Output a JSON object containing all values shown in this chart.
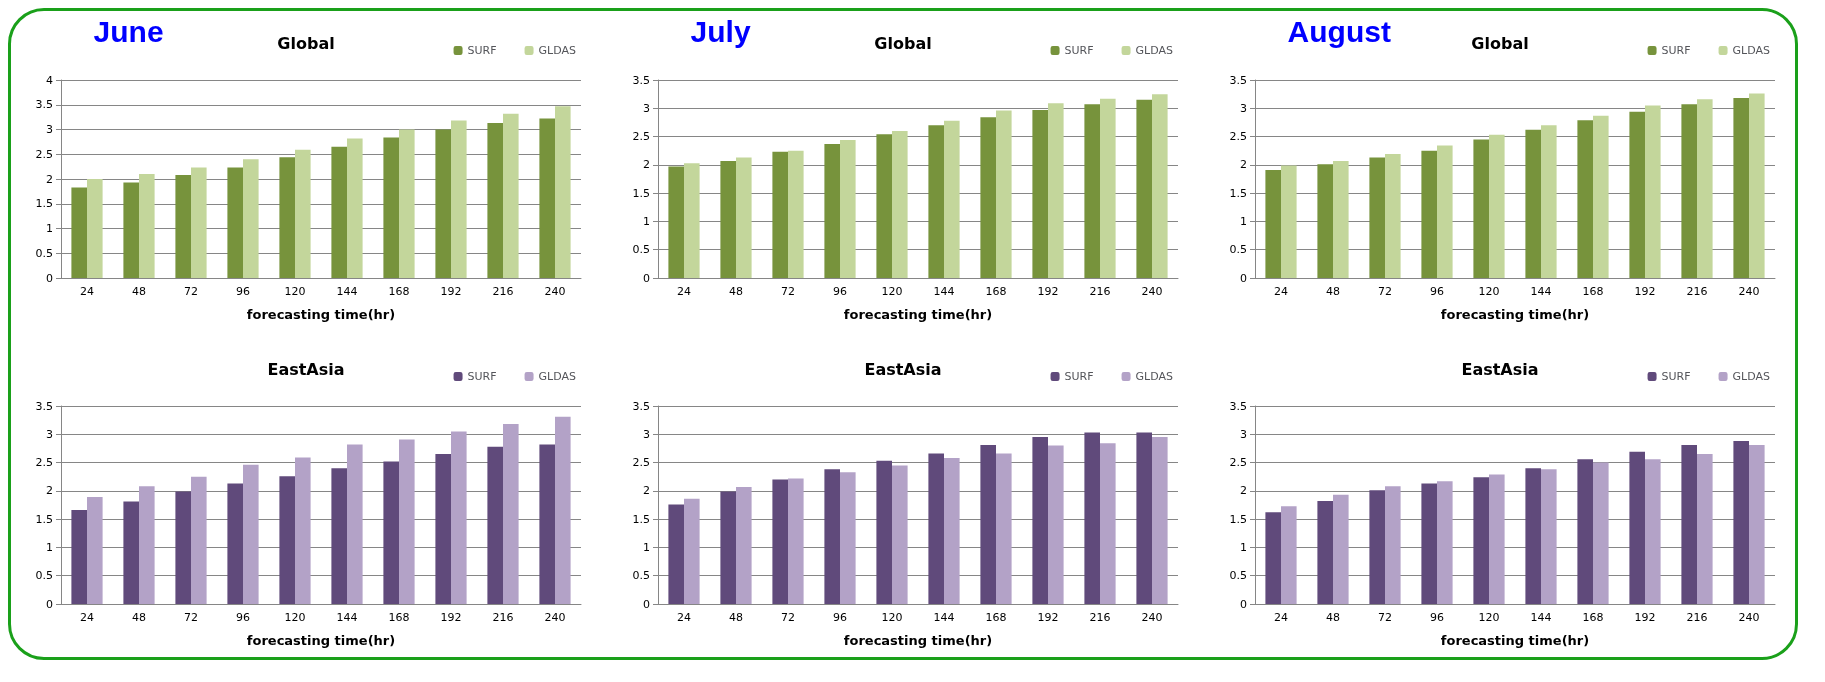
{
  "chart_data": [
    {
      "type": "bar",
      "title": "Global",
      "annotations": [
        "June"
      ],
      "xlabel": "forecasting time(hr)",
      "categories": [
        "24",
        "48",
        "72",
        "96",
        "120",
        "144",
        "168",
        "192",
        "216",
        "240"
      ],
      "ylim": [
        0,
        4
      ],
      "yticks": [
        0,
        0.5,
        1,
        1.5,
        2,
        2.5,
        3,
        3.5,
        4
      ],
      "grid": "y",
      "legend": "top right",
      "series": [
        {
          "name": "SURF",
          "color": "#77933c",
          "values": [
            1.83,
            1.93,
            2.08,
            2.23,
            2.44,
            2.65,
            2.84,
            3.0,
            3.13,
            3.22
          ]
        },
        {
          "name": "GLDAS",
          "color": "#c3d69b",
          "values": [
            2.0,
            2.1,
            2.23,
            2.4,
            2.59,
            2.82,
            3.0,
            3.18,
            3.32,
            3.47
          ]
        }
      ]
    },
    {
      "type": "bar",
      "title": "Global",
      "annotations": [
        "July"
      ],
      "xlabel": "forecasting time(hr)",
      "categories": [
        "24",
        "48",
        "72",
        "96",
        "120",
        "144",
        "168",
        "192",
        "216",
        "240"
      ],
      "ylim": [
        0,
        3.5
      ],
      "yticks": [
        0,
        0.5,
        1,
        1.5,
        2,
        2.5,
        3,
        3.5
      ],
      "grid": "y",
      "legend": "top right",
      "series": [
        {
          "name": "SURF",
          "color": "#77933c",
          "values": [
            1.97,
            2.07,
            2.23,
            2.37,
            2.54,
            2.7,
            2.84,
            2.97,
            3.07,
            3.15
          ]
        },
        {
          "name": "GLDAS",
          "color": "#c3d69b",
          "values": [
            2.03,
            2.13,
            2.25,
            2.44,
            2.6,
            2.78,
            2.96,
            3.09,
            3.17,
            3.25
          ]
        }
      ]
    },
    {
      "type": "bar",
      "title": "Global",
      "annotations": [
        "August"
      ],
      "xlabel": "forecasting time(hr)",
      "categories": [
        "24",
        "48",
        "72",
        "96",
        "120",
        "144",
        "168",
        "192",
        "216",
        "240"
      ],
      "ylim": [
        0,
        3.5
      ],
      "yticks": [
        0,
        0.5,
        1,
        1.5,
        2,
        2.5,
        3,
        3.5
      ],
      "grid": "y",
      "legend": "top right",
      "series": [
        {
          "name": "SURF",
          "color": "#77933c",
          "values": [
            1.91,
            2.01,
            2.13,
            2.25,
            2.45,
            2.62,
            2.79,
            2.94,
            3.07,
            3.18
          ]
        },
        {
          "name": "GLDAS",
          "color": "#c3d69b",
          "values": [
            1.99,
            2.07,
            2.19,
            2.34,
            2.53,
            2.7,
            2.87,
            3.05,
            3.16,
            3.26
          ]
        }
      ]
    },
    {
      "type": "bar",
      "title": "EastAsia",
      "xlabel": "forecasting time(hr)",
      "categories": [
        "24",
        "48",
        "72",
        "96",
        "120",
        "144",
        "168",
        "192",
        "216",
        "240"
      ],
      "ylim": [
        0,
        3.5
      ],
      "yticks": [
        0,
        0.5,
        1,
        1.5,
        2,
        2.5,
        3,
        3.5
      ],
      "grid": "y",
      "legend": "top right",
      "series": [
        {
          "name": "SURF",
          "color": "#604a7b",
          "values": [
            1.66,
            1.81,
            1.99,
            2.13,
            2.26,
            2.4,
            2.52,
            2.65,
            2.78,
            2.82
          ]
        },
        {
          "name": "GLDAS",
          "color": "#b3a2c7",
          "values": [
            1.89,
            2.08,
            2.25,
            2.46,
            2.59,
            2.82,
            2.91,
            3.05,
            3.18,
            3.31
          ]
        }
      ]
    },
    {
      "type": "bar",
      "title": "EastAsia",
      "xlabel": "forecasting time(hr)",
      "categories": [
        "24",
        "48",
        "72",
        "96",
        "120",
        "144",
        "168",
        "192",
        "216",
        "240"
      ],
      "ylim": [
        0,
        3.5
      ],
      "yticks": [
        0,
        0.5,
        1,
        1.5,
        2,
        2.5,
        3,
        3.5
      ],
      "grid": "y",
      "legend": "top right",
      "series": [
        {
          "name": "SURF",
          "color": "#604a7b",
          "values": [
            1.76,
            1.99,
            2.2,
            2.38,
            2.53,
            2.66,
            2.81,
            2.95,
            3.03,
            3.03
          ]
        },
        {
          "name": "GLDAS",
          "color": "#b3a2c7",
          "values": [
            1.86,
            2.07,
            2.22,
            2.33,
            2.45,
            2.58,
            2.66,
            2.8,
            2.84,
            2.95
          ]
        }
      ]
    },
    {
      "type": "bar",
      "title": "EastAsia",
      "xlabel": "forecasting time(hr)",
      "categories": [
        "24",
        "48",
        "72",
        "96",
        "120",
        "144",
        "168",
        "192",
        "216",
        "240"
      ],
      "ylim": [
        0,
        3.5
      ],
      "yticks": [
        0,
        0.5,
        1,
        1.5,
        2,
        2.5,
        3,
        3.5
      ],
      "grid": "y",
      "legend": "top right",
      "series": [
        {
          "name": "SURF",
          "color": "#604a7b",
          "values": [
            1.62,
            1.82,
            2.01,
            2.13,
            2.24,
            2.4,
            2.56,
            2.69,
            2.81,
            2.88
          ]
        },
        {
          "name": "GLDAS",
          "color": "#b3a2c7",
          "values": [
            1.73,
            1.93,
            2.08,
            2.17,
            2.29,
            2.38,
            2.5,
            2.56,
            2.65,
            2.81
          ]
        }
      ]
    }
  ]
}
